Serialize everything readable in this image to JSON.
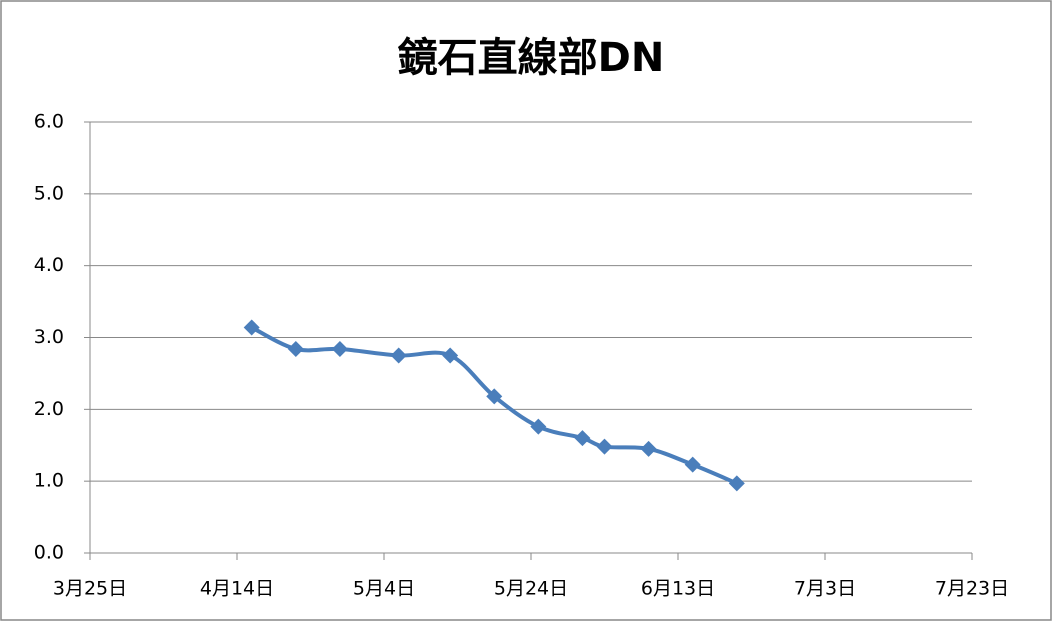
{
  "chart_data": {
    "type": "line",
    "title": "鏡石直線部DN",
    "x": [
      "04-16",
      "04-22",
      "04-28",
      "05-06",
      "05-13",
      "05-19",
      "05-25",
      "05-31",
      "06-03",
      "06-09",
      "06-15",
      "06-21"
    ],
    "series": [
      {
        "name": "DN",
        "color": "#4a7ebb",
        "values": [
          3.14,
          2.84,
          2.84,
          2.75,
          2.75,
          2.18,
          1.76,
          1.6,
          1.48,
          1.45,
          1.23,
          0.97
        ]
      }
    ],
    "xlim": [
      "03-25",
      "07-23"
    ],
    "xticks": [
      {
        "value": "03-25",
        "label": "3月25日"
      },
      {
        "value": "04-14",
        "label": "4月14日"
      },
      {
        "value": "05-04",
        "label": "5月4日"
      },
      {
        "value": "05-24",
        "label": "5月24日"
      },
      {
        "value": "06-13",
        "label": "6月13日"
      },
      {
        "value": "07-03",
        "label": "7月3日"
      },
      {
        "value": "07-23",
        "label": "7月23日"
      }
    ],
    "ylim": [
      0,
      6
    ],
    "yticks": [
      {
        "value": 0,
        "label": "0.0"
      },
      {
        "value": 1,
        "label": "1.0"
      },
      {
        "value": 2,
        "label": "2.0"
      },
      {
        "value": 3,
        "label": "3.0"
      },
      {
        "value": 4,
        "label": "4.0"
      },
      {
        "value": 5,
        "label": "5.0"
      },
      {
        "value": 6,
        "label": "6.0"
      }
    ],
    "grid": true
  }
}
